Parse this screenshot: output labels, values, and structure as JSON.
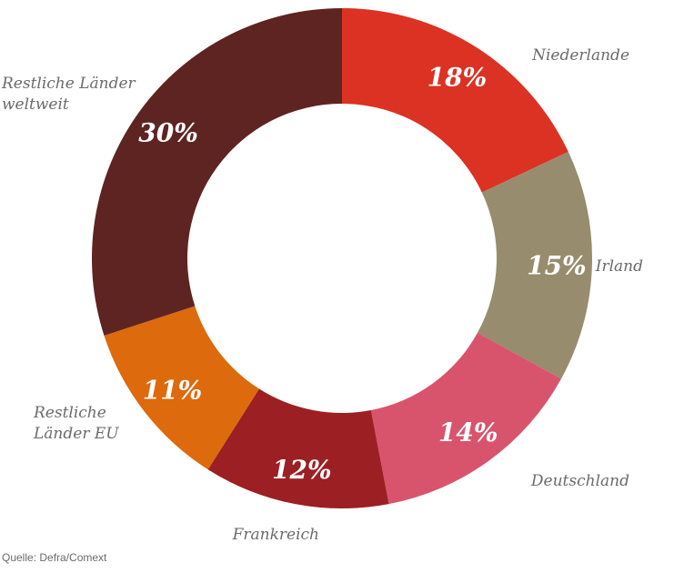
{
  "chart_data": {
    "type": "pie",
    "variant": "donut",
    "title": "",
    "slices": [
      {
        "label": [
          "Niederlande"
        ],
        "value": 18,
        "display": "18%",
        "color": "#dc3223"
      },
      {
        "label": [
          "Irland"
        ],
        "value": 15,
        "display": "15%",
        "color": "#978c6e"
      },
      {
        "label": [
          "Deutschland"
        ],
        "value": 14,
        "display": "14%",
        "color": "#d8546c"
      },
      {
        "label": [
          "Frankreich"
        ],
        "value": 12,
        "display": "12%",
        "color": "#9c1f23"
      },
      {
        "label": [
          "Restliche",
          "Länder EU"
        ],
        "value": 11,
        "display": "11%",
        "color": "#dd6a0c"
      },
      {
        "label": [
          "Restliche Länder",
          "weltweit"
        ],
        "value": 30,
        "display": "30%",
        "color": "#5e2422"
      }
    ]
  },
  "source": "Quelle: Defra/Comext"
}
